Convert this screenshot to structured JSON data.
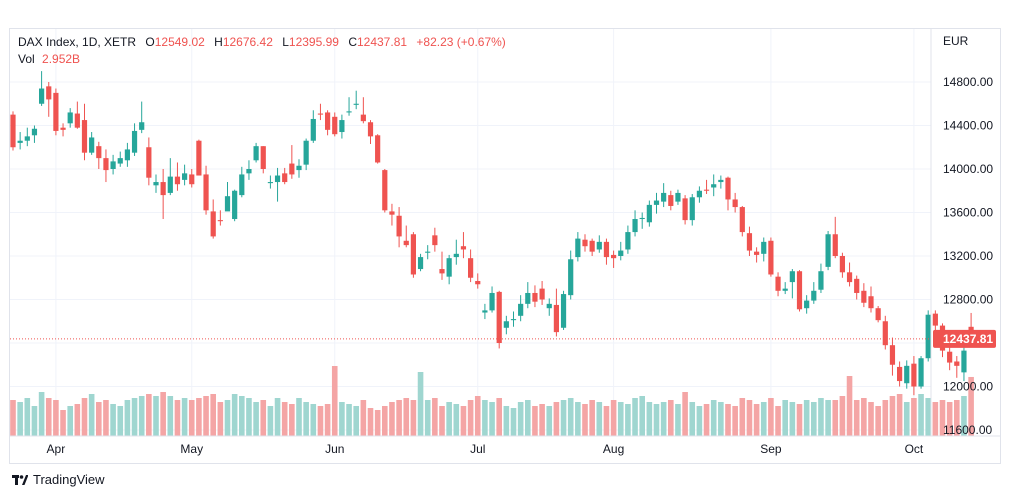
{
  "header": {
    "symbol": "DAX Index, 1D, XETR",
    "open_label": "O",
    "open": "12549.02",
    "high_label": "H",
    "high": "12676.42",
    "low_label": "L",
    "low": "12395.99",
    "close_label": "C",
    "close": "12437.81",
    "change": "+82.23 (+0.67%)",
    "vol_label": "Vol",
    "vol": "2.952B"
  },
  "footer": {
    "brand": "TradingView"
  },
  "colors": {
    "up": "#26a69a",
    "down": "#ef5350",
    "up_vol": "#9fd6d0",
    "down_vol": "#f4a5a5"
  },
  "chart_data": {
    "type": "candlestick",
    "currency": "EUR",
    "last_price": "12437.81",
    "ylim": [
      11600,
      14900
    ],
    "y_ticks": [
      "14800.00",
      "14400.00",
      "14000.00",
      "13600.00",
      "13200.00",
      "12800.00",
      "12400.00",
      "12000.00",
      "11600.00"
    ],
    "y_tick_values": [
      14800,
      14400,
      14000,
      13600,
      13200,
      12800,
      12400,
      12000,
      11600
    ],
    "x_tick_labels": [
      "Apr",
      "May",
      "Jun",
      "Jul",
      "Aug",
      "Sep",
      "Oct"
    ],
    "x_tick_index": [
      6,
      25,
      45,
      65,
      84,
      106,
      126
    ],
    "candles": [
      [
        14500,
        14200,
        14530,
        14170,
        1.8
      ],
      [
        14240,
        14260,
        14340,
        14180,
        1.7
      ],
      [
        14260,
        14300,
        14380,
        14210,
        1.9
      ],
      [
        14310,
        14370,
        14400,
        14240,
        1.5
      ],
      [
        14600,
        14740,
        14900,
        14580,
        2.2
      ],
      [
        14760,
        14640,
        14800,
        14480,
        1.9
      ],
      [
        14700,
        14350,
        14740,
        14310,
        1.8
      ],
      [
        14380,
        14360,
        14420,
        14300,
        1.3
      ],
      [
        14420,
        14520,
        14560,
        14380,
        1.5
      ],
      [
        14510,
        14380,
        14620,
        14370,
        1.6
      ],
      [
        14450,
        14150,
        14600,
        14080,
        1.9
      ],
      [
        14150,
        14290,
        14340,
        14130,
        2.1
      ],
      [
        14210,
        14100,
        14250,
        14000,
        1.7
      ],
      [
        14100,
        13990,
        14180,
        13880,
        1.8
      ],
      [
        14000,
        14070,
        14130,
        13950,
        1.6
      ],
      [
        14050,
        14100,
        14160,
        14020,
        1.5
      ],
      [
        14080,
        14180,
        14240,
        14020,
        1.8
      ],
      [
        14150,
        14350,
        14420,
        14120,
        1.9
      ],
      [
        14360,
        14430,
        14620,
        14330,
        2.0
      ],
      [
        14200,
        13920,
        14290,
        13850,
        2.1
      ],
      [
        13850,
        13880,
        13950,
        13780,
        2.0
      ],
      [
        13880,
        13760,
        14000,
        13540,
        2.2
      ],
      [
        13780,
        13930,
        14100,
        13760,
        2.0
      ],
      [
        13930,
        13860,
        14060,
        13800,
        1.8
      ],
      [
        13900,
        13960,
        14040,
        13850,
        1.9
      ],
      [
        13950,
        13860,
        14000,
        13830,
        1.8
      ],
      [
        14260,
        13940,
        14270,
        13940,
        1.9
      ],
      [
        13950,
        13620,
        14030,
        13580,
        2.0
      ],
      [
        13610,
        13380,
        13720,
        13360,
        2.1
      ],
      [
        13530,
        13520,
        13620,
        13480,
        1.7
      ],
      [
        13610,
        13750,
        13880,
        13680,
        1.8
      ],
      [
        13540,
        13800,
        13810,
        13520,
        2.1
      ],
      [
        13760,
        13950,
        14020,
        13740,
        2.0
      ],
      [
        13960,
        14000,
        14080,
        13900,
        1.9
      ],
      [
        14080,
        14210,
        14240,
        14060,
        1.7
      ],
      [
        14210,
        14000,
        14210,
        13960,
        1.8
      ],
      [
        13870,
        13880,
        13940,
        13820,
        1.5
      ],
      [
        13880,
        13940,
        14010,
        13700,
        1.9
      ],
      [
        13960,
        13880,
        14010,
        13860,
        1.7
      ],
      [
        14050,
        13950,
        14220,
        13910,
        1.6
      ],
      [
        13990,
        14030,
        14090,
        13920,
        1.9
      ],
      [
        14040,
        14260,
        14280,
        13990,
        1.7
      ],
      [
        14260,
        14460,
        14540,
        14240,
        1.6
      ],
      [
        14510,
        14500,
        14600,
        14450,
        1.5
      ],
      [
        14520,
        14360,
        14540,
        14310,
        1.6
      ],
      [
        14480,
        14320,
        14520,
        14300,
        3.5
      ],
      [
        14340,
        14450,
        14500,
        14280,
        1.7
      ],
      [
        14520,
        14530,
        14660,
        14490,
        1.6
      ],
      [
        14590,
        14600,
        14720,
        14550,
        1.5
      ],
      [
        14500,
        14440,
        14660,
        14420,
        1.8
      ],
      [
        14430,
        14300,
        14450,
        14230,
        1.4
      ],
      [
        14310,
        14060,
        14320,
        14050,
        1.3
      ],
      [
        13990,
        13620,
        14000,
        13600,
        1.5
      ],
      [
        13610,
        13580,
        13680,
        13480,
        1.7
      ],
      [
        13570,
        13380,
        13650,
        13280,
        1.8
      ],
      [
        13340,
        13300,
        13480,
        13280,
        1.9
      ],
      [
        13400,
        13030,
        13420,
        13000,
        1.8
      ],
      [
        13080,
        13190,
        13220,
        13060,
        3.2
      ],
      [
        13230,
        13240,
        13300,
        13170,
        1.8
      ],
      [
        13390,
        13300,
        13460,
        13240,
        1.9
      ],
      [
        13080,
        13040,
        13240,
        12980,
        1.5
      ],
      [
        13010,
        13180,
        13210,
        12940,
        1.7
      ],
      [
        13190,
        13220,
        13350,
        13120,
        1.6
      ],
      [
        13290,
        13260,
        13420,
        13180,
        1.5
      ],
      [
        13180,
        13000,
        13260,
        12960,
        1.8
      ],
      [
        12970,
        12940,
        13040,
        12900,
        2.0
      ],
      [
        12680,
        12700,
        12760,
        12620,
        1.8
      ],
      [
        12700,
        12860,
        12920,
        12680,
        1.7
      ],
      [
        12870,
        12400,
        12880,
        12350,
        1.9
      ],
      [
        12540,
        12600,
        12650,
        12480,
        1.5
      ],
      [
        12610,
        12620,
        12690,
        12550,
        1.4
      ],
      [
        12650,
        12760,
        12840,
        12600,
        1.7
      ],
      [
        12760,
        12860,
        12960,
        12720,
        1.8
      ],
      [
        12860,
        12780,
        12930,
        12730,
        1.5
      ],
      [
        12900,
        12800,
        12970,
        12750,
        1.6
      ],
      [
        12720,
        12760,
        12810,
        12650,
        1.5
      ],
      [
        12750,
        12500,
        12900,
        12460,
        1.7
      ],
      [
        12540,
        12850,
        12880,
        12520,
        1.8
      ],
      [
        12840,
        13170,
        13250,
        12800,
        1.9
      ],
      [
        13190,
        13360,
        13420,
        13150,
        1.7
      ],
      [
        13350,
        13290,
        13400,
        13240,
        1.6
      ],
      [
        13340,
        13240,
        13360,
        13200,
        1.8
      ],
      [
        13260,
        13330,
        13390,
        13230,
        1.7
      ],
      [
        13330,
        13190,
        13360,
        13120,
        1.5
      ],
      [
        13210,
        13180,
        13250,
        13090,
        1.8
      ],
      [
        13200,
        13250,
        13330,
        13160,
        1.7
      ],
      [
        13260,
        13420,
        13480,
        13220,
        1.6
      ],
      [
        13420,
        13540,
        13620,
        13380,
        1.9
      ],
      [
        13540,
        13550,
        13600,
        13450,
        2.0
      ],
      [
        13510,
        13670,
        13710,
        13470,
        1.7
      ],
      [
        13670,
        13710,
        13780,
        13590,
        1.6
      ],
      [
        13700,
        13780,
        13870,
        13650,
        1.7
      ],
      [
        13760,
        13660,
        13800,
        13620,
        1.8
      ],
      [
        13700,
        13780,
        13810,
        13670,
        1.6
      ],
      [
        13730,
        13530,
        13760,
        13490,
        2.2
      ],
      [
        13530,
        13740,
        13770,
        13480,
        1.7
      ],
      [
        13740,
        13800,
        13840,
        13690,
        1.5
      ],
      [
        13810,
        13800,
        13900,
        13770,
        1.6
      ],
      [
        13830,
        13860,
        13950,
        13750,
        1.8
      ],
      [
        13880,
        13900,
        13940,
        13820,
        1.7
      ],
      [
        13920,
        13720,
        13930,
        13620,
        1.6
      ],
      [
        13720,
        13650,
        13780,
        13600,
        1.5
      ],
      [
        13650,
        13420,
        13660,
        13380,
        1.9
      ],
      [
        13410,
        13250,
        13470,
        13200,
        1.8
      ],
      [
        13240,
        13210,
        13280,
        13140,
        1.6
      ],
      [
        13220,
        13330,
        13370,
        13150,
        1.7
      ],
      [
        13340,
        13030,
        13370,
        13010,
        1.9
      ],
      [
        13010,
        12880,
        13050,
        12830,
        1.5
      ],
      [
        12880,
        12900,
        12960,
        12850,
        1.8
      ],
      [
        12960,
        13060,
        13080,
        12810,
        1.7
      ],
      [
        13060,
        12710,
        13070,
        12690,
        1.6
      ],
      [
        12720,
        12790,
        12840,
        12670,
        1.8
      ],
      [
        12790,
        12880,
        12960,
        12760,
        1.7
      ],
      [
        12890,
        13060,
        13130,
        12860,
        1.9
      ],
      [
        13100,
        13400,
        13430,
        13070,
        1.8
      ],
      [
        13400,
        13200,
        13560,
        13180,
        1.8
      ],
      [
        13200,
        13050,
        13230,
        13000,
        2.0
      ],
      [
        13050,
        12960,
        13140,
        12920,
        3.0
      ],
      [
        12990,
        12860,
        13020,
        12800,
        1.8
      ],
      [
        12880,
        12770,
        12950,
        12730,
        1.9
      ],
      [
        12830,
        12720,
        12920,
        12680,
        1.7
      ],
      [
        12720,
        12610,
        12740,
        12590,
        1.5
      ],
      [
        12600,
        12380,
        12650,
        12340,
        1.8
      ],
      [
        12380,
        12200,
        12450,
        12100,
        2.0
      ],
      [
        12180,
        12050,
        12230,
        12000,
        2.1
      ],
      [
        12030,
        12190,
        12240,
        11980,
        1.7
      ],
      [
        12210,
        12000,
        12280,
        11920,
        1.9
      ],
      [
        12000,
        12260,
        12280,
        11980,
        2.1
      ],
      [
        12260,
        12660,
        12700,
        12230,
        1.9
      ],
      [
        12670,
        12560,
        12700,
        12500,
        1.7
      ],
      [
        12560,
        12330,
        12580,
        12270,
        1.8
      ],
      [
        12320,
        12220,
        12450,
        12150,
        1.7
      ],
      [
        12230,
        12190,
        12280,
        12080,
        1.8
      ],
      [
        12130,
        12330,
        12370,
        12050,
        2.0
      ],
      [
        12549.02,
        12437.81,
        12676.42,
        12395.99,
        2.952
      ]
    ]
  }
}
